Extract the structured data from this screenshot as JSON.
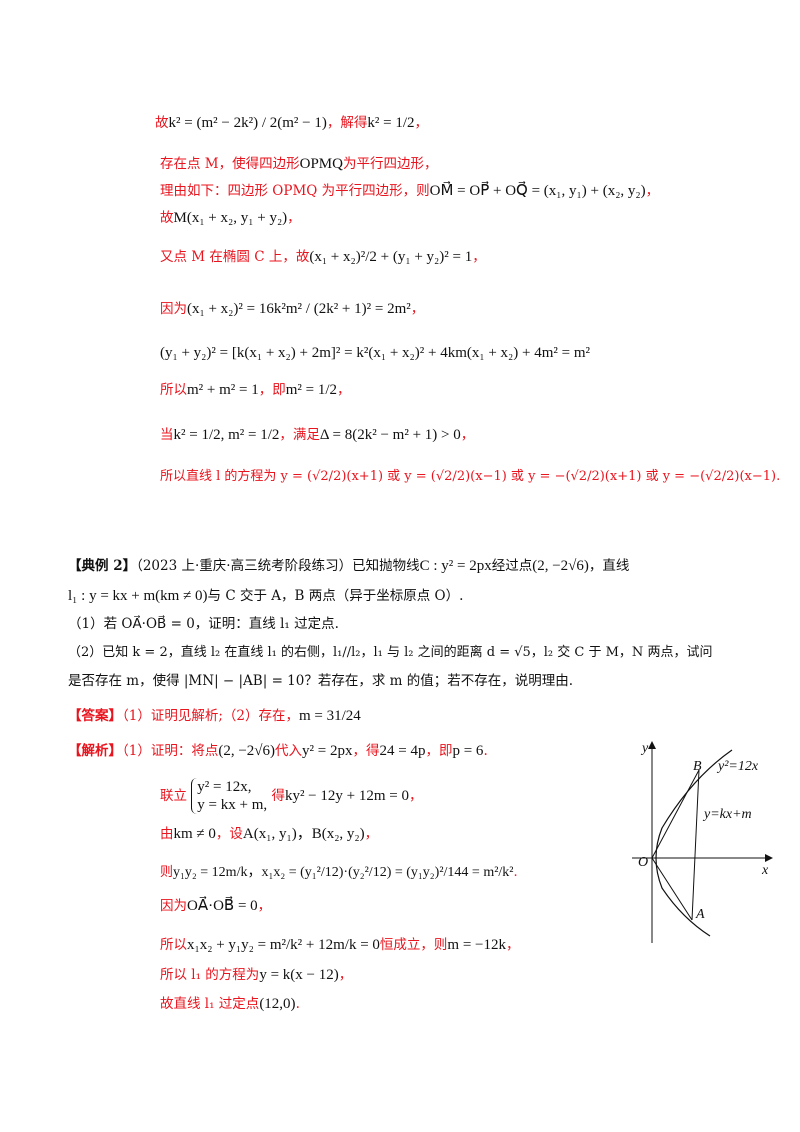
{
  "solution_cont": {
    "l1_pre": "故",
    "l1_math": "k² = (m² − 2k²) / 2(m² − 1)",
    "l1_mid": "，解得",
    "l1_math2": "k² = 1/2",
    "l1_post": "，",
    "l2_text": "存在点 M，使得四边形",
    "l2_math": "OPMQ",
    "l2_post": "为平行四边形，",
    "l3_text": "理由如下：四边形 OPMQ 为平行四边形，则",
    "l3_math": "OM⃗ = OP⃗ + OQ⃗ = (x₁, y₁) + (x₂, y₂)",
    "l3_post": "，",
    "l4_pre": "故",
    "l4_math": "M(x₁ + x₂, y₁ + y₂)",
    "l4_post": "，",
    "l5_text": "又点 M 在椭圆 C 上，故",
    "l5_math": "(x₁ + x₂)²/2 + (y₁ + y₂)² = 1",
    "l5_post": "，",
    "l6_pre": "因为",
    "l6_math": "(x₁ + x₂)² = 16k²m² / (2k² + 1)² = 2m²",
    "l6_post": "，",
    "l7_math": "(y₁ + y₂)² = [k(x₁ + x₂) + 2m]² = k²(x₁ + x₂)² + 4km(x₁ + x₂) + 4m² = m²",
    "l8_pre": "所以",
    "l8_math": "m² + m² = 1",
    "l8_mid": "，即",
    "l8_math2": "m² = 1/2",
    "l8_post": "，",
    "l9_pre": "当",
    "l9_math": "k² = 1/2, m² = 1/2",
    "l9_mid": "，满足",
    "l9_math2": "Δ = 8(2k² − m² + 1) > 0",
    "l9_post": "，",
    "l10_text": "所以直线 l 的方程为 y = (√2/2)(x+1) 或 y = (√2/2)(x−1) 或 y = −(√2/2)(x+1) 或 y = −(√2/2)(x−1)."
  },
  "example2": {
    "tag": "【典例 2】",
    "source": "（2023 上·重庆·高三统考阶段练习）已知抛物线",
    "p1_math": "C : y² = 2px",
    "p1_mid": "经过点",
    "p1_math2": "(2, −2√6)",
    "p1_post": "，直线",
    "p2_math": "l₁ : y = kx + m(km ≠ 0)",
    "p2_text": "与 C 交于 A，B 两点（异于坐标原点 O）.",
    "q1": "（1）若 OA⃗·OB⃗ = 0，证明：直线 l₁ 过定点.",
    "q2a": "（2）已知 k = 2，直线 l₂ 在直线 l₁ 的右侧，l₁//l₂，l₁ 与 l₂ 之间的距离 d = √5，l₂ 交 C 于 M，N 两点，试问",
    "q2b": "是否存在 m，使得 |MN| − |AB| = 10？若存在，求 m 的值；若不存在，说明理由."
  },
  "answer": {
    "tag": "【答案】",
    "text": "（1）证明见解析;（2）存在，",
    "math": "m = 31/24"
  },
  "analysis": {
    "tag": "【解析】",
    "a1_text": "（1）证明：将点",
    "a1_math": "(2, −2√6)",
    "a1_mid": "代入",
    "a1_math2": "y² = 2px",
    "a1_mid2": "，得",
    "a1_math3": "24 = 4p",
    "a1_mid3": "，即",
    "a1_math4": "p = 6",
    "a1_post": ".",
    "a2_pre": "联立",
    "a2_sys1": "y² = 12x,",
    "a2_sys2": "y = kx + m,",
    "a2_mid": "得",
    "a2_math": "ky² − 12y + 12m = 0",
    "a2_post": "，",
    "a3_text": "由",
    "a3_math": "km ≠ 0",
    "a3_mid": "，设",
    "a3_math2": "A(x₁, y₁)，B(x₂, y₂)",
    "a3_post": "，",
    "a4_pre": "则",
    "a4_math": "y₁y₂ = 12m/k，x₁x₂ = (y₁²/12)·(y₂²/12) = (y₁y₂)²/144 = m²/k²",
    "a4_post": ".",
    "a5_pre": "因为",
    "a5_math": "OA⃗·OB⃗ = 0",
    "a5_post": "，",
    "a6_pre": "所以",
    "a6_math": "x₁x₂ + y₁y₂ = m²/k² + 12m/k = 0",
    "a6_mid": "恒成立，则",
    "a6_math2": "m = −12k",
    "a6_post": "，",
    "a7_pre": "所以 l₁ 的方程为",
    "a7_math": "y = k(x − 12)",
    "a7_post": "，",
    "a8_pre": "故直线 l₁ 过定点",
    "a8_math": "(12,0)",
    "a8_post": "."
  },
  "figure": {
    "label_y": "y",
    "label_x": "x",
    "label_o": "O",
    "label_b": "B",
    "label_a": "A",
    "curve_label": "y²=12x",
    "line_label": "y=kx+m"
  }
}
